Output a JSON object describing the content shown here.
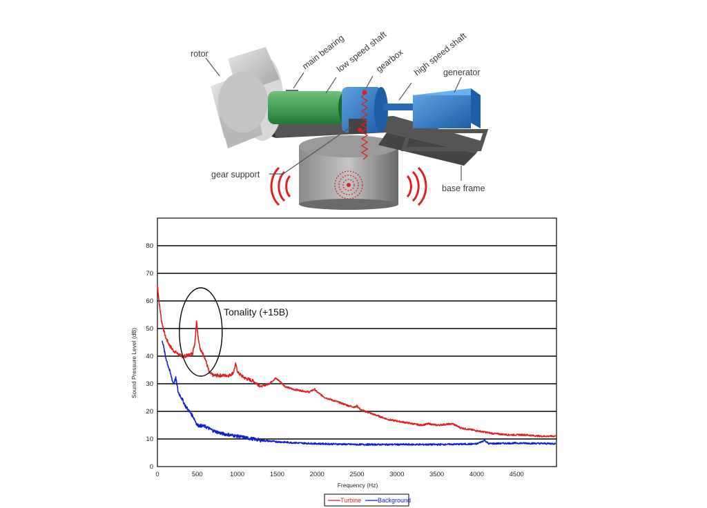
{
  "diagram": {
    "labels": {
      "rotor": "rotor",
      "main_bearing": "main bearing",
      "low_speed_shaft": "low speed shaft",
      "gearbox": "gearbox",
      "high_speed_shaft": "high speed shaft",
      "generator": "generator",
      "gear_support": "gear support",
      "base_frame": "base frame"
    }
  },
  "chart_data": {
    "type": "line",
    "title": "",
    "xlabel": "Frequency (Hz)",
    "ylabel": "Sound Pressure Level (dB)",
    "xlim": [
      0,
      5000
    ],
    "ylim": [
      0,
      90
    ],
    "xticks": [
      0,
      500,
      1000,
      1500,
      2000,
      2500,
      3000,
      3500,
      4000,
      4500
    ],
    "yticks": [
      0,
      10,
      20,
      30,
      40,
      50,
      60,
      70,
      80
    ],
    "grid": "horizontal",
    "legend": "bottom-center",
    "annotation": {
      "text": "Tonality (+15B)",
      "x": 500,
      "y": 48
    },
    "series": [
      {
        "name": "Turbine",
        "color": "#e02020",
        "points": [
          [
            0,
            66
          ],
          [
            20,
            60
          ],
          [
            50,
            53
          ],
          [
            100,
            47
          ],
          [
            150,
            44
          ],
          [
            200,
            42
          ],
          [
            250,
            41
          ],
          [
            300,
            40
          ],
          [
            350,
            40
          ],
          [
            400,
            40.5
          ],
          [
            440,
            41
          ],
          [
            470,
            45
          ],
          [
            490,
            53
          ],
          [
            510,
            47
          ],
          [
            540,
            42
          ],
          [
            570,
            41
          ],
          [
            600,
            39
          ],
          [
            650,
            34
          ],
          [
            700,
            33
          ],
          [
            800,
            33
          ],
          [
            900,
            33
          ],
          [
            950,
            34
          ],
          [
            980,
            37
          ],
          [
            1010,
            34
          ],
          [
            1050,
            33
          ],
          [
            1100,
            32
          ],
          [
            1200,
            31
          ],
          [
            1300,
            29
          ],
          [
            1400,
            30
          ],
          [
            1480,
            32
          ],
          [
            1530,
            31
          ],
          [
            1600,
            29
          ],
          [
            1700,
            28
          ],
          [
            1800,
            27.5
          ],
          [
            1900,
            27
          ],
          [
            1970,
            28
          ],
          [
            2000,
            27
          ],
          [
            2100,
            25
          ],
          [
            2200,
            24
          ],
          [
            2300,
            23
          ],
          [
            2400,
            22
          ],
          [
            2480,
            21.5
          ],
          [
            2500,
            22
          ],
          [
            2550,
            20.5
          ],
          [
            2700,
            19
          ],
          [
            2900,
            17
          ],
          [
            3100,
            16
          ],
          [
            3300,
            15
          ],
          [
            3400,
            15.5
          ],
          [
            3500,
            15
          ],
          [
            3700,
            15.5
          ],
          [
            3800,
            14
          ],
          [
            4000,
            13
          ],
          [
            4200,
            12
          ],
          [
            4400,
            11.5
          ],
          [
            4600,
            11.5
          ],
          [
            4800,
            11
          ],
          [
            4990,
            11
          ]
        ]
      },
      {
        "name": "Background",
        "color": "#1020d0",
        "points": [
          [
            60,
            46
          ],
          [
            100,
            40
          ],
          [
            150,
            35
          ],
          [
            200,
            30
          ],
          [
            230,
            32
          ],
          [
            260,
            27
          ],
          [
            300,
            25
          ],
          [
            350,
            22
          ],
          [
            400,
            20
          ],
          [
            450,
            18
          ],
          [
            500,
            15
          ],
          [
            600,
            14.5
          ],
          [
            700,
            13
          ],
          [
            800,
            12
          ],
          [
            900,
            11.5
          ],
          [
            1000,
            11
          ],
          [
            1100,
            10.5
          ],
          [
            1200,
            10
          ],
          [
            1300,
            9.5
          ],
          [
            1500,
            9
          ],
          [
            1800,
            8.5
          ],
          [
            2000,
            8.3
          ],
          [
            2500,
            8
          ],
          [
            3000,
            8
          ],
          [
            3500,
            8
          ],
          [
            4000,
            8.2
          ],
          [
            4100,
            9.5
          ],
          [
            4150,
            8.3
          ],
          [
            4500,
            8.5
          ],
          [
            4990,
            8.3
          ]
        ]
      }
    ]
  }
}
